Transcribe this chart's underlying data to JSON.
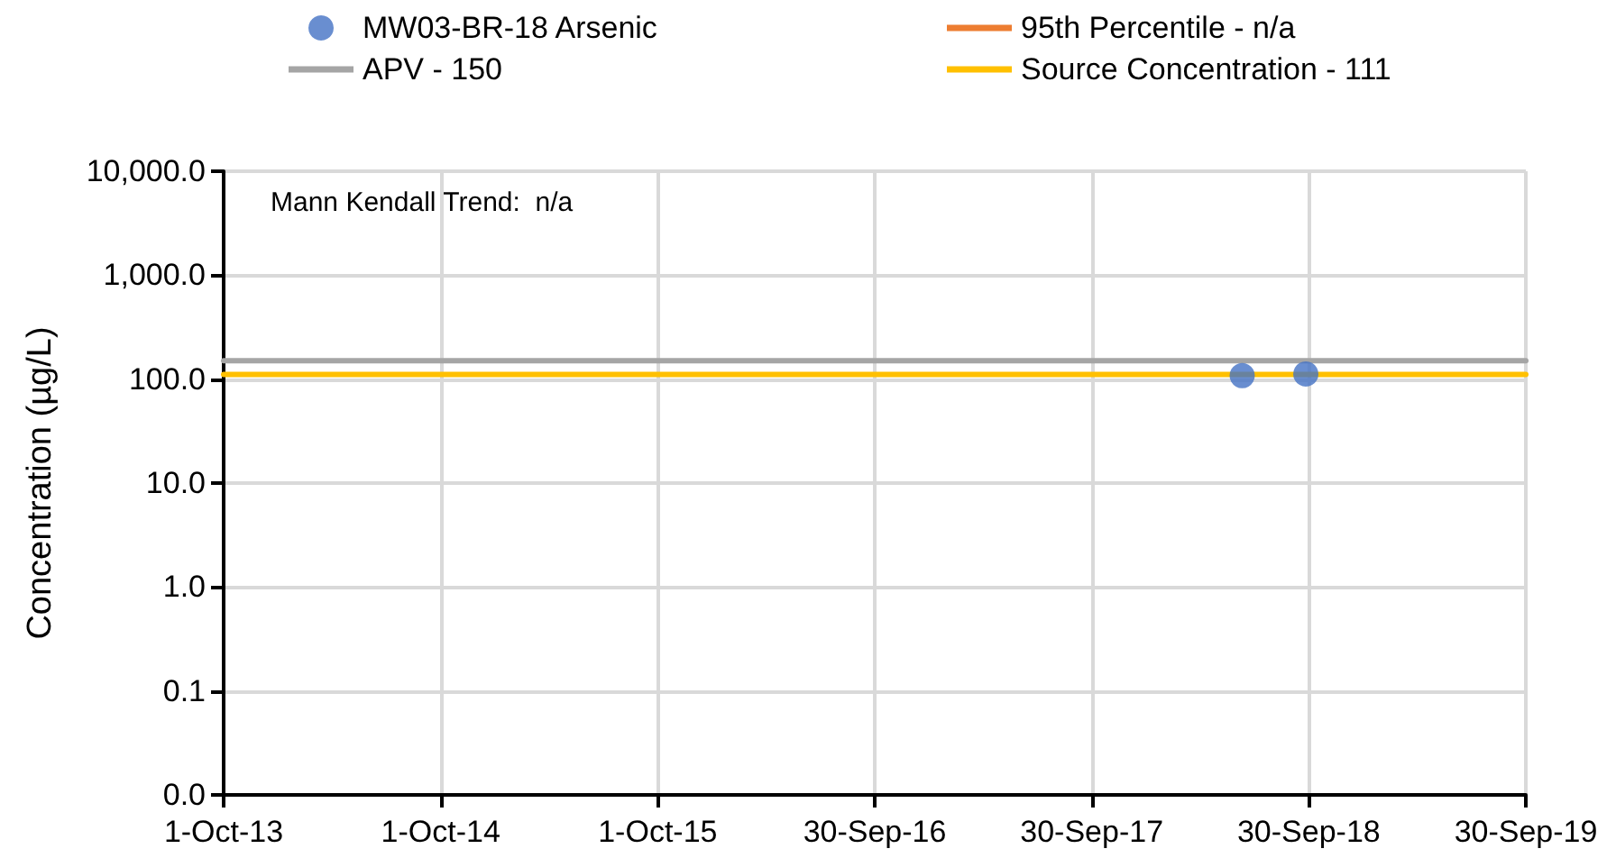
{
  "chart_data": {
    "type": "scatter",
    "ylabel": "Concentration (µg/L)",
    "log": "y",
    "grid": true,
    "legend": "top",
    "annotations": [
      "Mann Kendall Trend:  n/a"
    ],
    "xlim": [
      "2013-10-01",
      "2019-09-30"
    ],
    "xticks": [
      {
        "value": "2013-10-01",
        "label": "1-Oct-13"
      },
      {
        "value": "2014-10-01",
        "label": "1-Oct-14"
      },
      {
        "value": "2015-10-01",
        "label": "1-Oct-15"
      },
      {
        "value": "2016-09-30",
        "label": "30-Sep-16"
      },
      {
        "value": "2017-09-30",
        "label": "30-Sep-17"
      },
      {
        "value": "2018-09-30",
        "label": "30-Sep-18"
      },
      {
        "value": "2019-09-30",
        "label": "30-Sep-19"
      }
    ],
    "ylim": [
      0.01,
      10000
    ],
    "yticks": [
      {
        "value": 0.01,
        "label": "0.0"
      },
      {
        "value": 0.1,
        "label": "0.1"
      },
      {
        "value": 1,
        "label": "1.0"
      },
      {
        "value": 10,
        "label": "10.0"
      },
      {
        "value": 100,
        "label": "100.0"
      },
      {
        "value": 1000,
        "label": "1,000.0"
      },
      {
        "value": 10000,
        "label": "10,000.0"
      }
    ],
    "series": [
      {
        "name": "MW03-BR-18 Arsenic",
        "marker": "circle",
        "color": "#4472c4",
        "x": [
          "2018-06-10",
          "2018-09-25"
        ],
        "values": [
          108,
          112
        ]
      },
      {
        "name": "95th Percentile - n/a",
        "type": "line",
        "marker": "none",
        "color": "#ed7d31"
      },
      {
        "name": "APV - 150",
        "type": "line",
        "marker": "none",
        "color": "#a5a5a5",
        "x": [
          "2013-10-01",
          "2019-09-30"
        ],
        "values": [
          150,
          150
        ]
      },
      {
        "name": "Source Concentration - 111",
        "type": "line",
        "marker": "none",
        "color": "#ffc000",
        "x": [
          "2013-10-01",
          "2019-09-30"
        ],
        "values": [
          111,
          111
        ]
      }
    ]
  }
}
